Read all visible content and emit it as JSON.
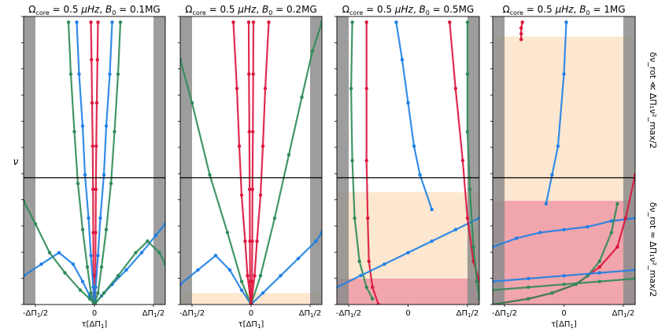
{
  "figure": {
    "y_axis_symbol": "ν",
    "right_label_top": "δν_rot ≪ ΔΠ₁ν²_max/2",
    "right_label_bottom": "δν_rot ≈ ΔΠ₁ν²_max/2",
    "colors": {
      "prograde": "#dc143c",
      "zonal": "#2e8b57",
      "retrograde": "#1e7fe6",
      "shade_gray": "#8c8c8c",
      "band_peach": "#fde3c8",
      "band_red": "#f0a0a8",
      "divider": "#000000"
    }
  },
  "chart_data": [
    {
      "type": "scatter",
      "title": "Ω_core = 0.5 μHz, B_0 = 0.1MG",
      "title_parts": {
        "omega": "Ω",
        "omega_sub": "core",
        "omega_val": " = 0.5 ",
        "unit": "μHz",
        "sep": ", ",
        "b": "B",
        "b_sub": "0",
        "b_val": " = 0.1MG"
      },
      "xlabel": "τ[ΔΠ₁]",
      "xlabel_parts": {
        "main": "τ[ΔΠ",
        "sub": "1",
        "end": "]"
      },
      "xticks": [
        "-ΔΠ₁/2",
        "0",
        "ΔΠ₁/2"
      ],
      "xtick_parts": [
        {
          "pre": "-ΔΠ",
          "sub": "1",
          "post": "/2"
        },
        {
          "pre": "0",
          "sub": "",
          "post": ""
        },
        {
          "pre": "ΔΠ",
          "sub": "1",
          "post": "/2"
        }
      ],
      "xlim": [
        -0.6,
        0.6
      ],
      "ylim": [
        0,
        1
      ],
      "shaded_gray_x": [
        [
          -0.6,
          -0.5
        ],
        [
          0.5,
          0.6
        ]
      ],
      "bands": [],
      "divider_y": 0.44,
      "series": [
        {
          "role": "prograde",
          "kind": "dots",
          "x": [
            -0.03,
            -0.025,
            -0.02,
            -0.015,
            -0.012,
            -0.01,
            -0.008,
            -0.007
          ],
          "y": [
            0.98,
            0.85,
            0.7,
            0.55,
            0.4,
            0.25,
            0.1,
            0.0
          ]
        },
        {
          "role": "prograde",
          "kind": "dots",
          "x": [
            0.03,
            0.025,
            0.02,
            0.015,
            0.012,
            0.01,
            0.008,
            0.007
          ],
          "y": [
            0.98,
            0.85,
            0.7,
            0.55,
            0.4,
            0.25,
            0.1,
            0.0
          ]
        },
        {
          "role": "retrograde",
          "kind": "dots",
          "x": [
            -0.6,
            -0.45,
            -0.3,
            -0.18,
            -0.1,
            -0.04,
            0.0
          ],
          "y": [
            0.1,
            0.14,
            0.18,
            0.14,
            0.08,
            0.03,
            0.0
          ]
        },
        {
          "role": "retrograde",
          "kind": "dots",
          "x": [
            0.0,
            0.06,
            0.15,
            0.27,
            0.4,
            0.52,
            0.6
          ],
          "y": [
            0.0,
            0.03,
            0.07,
            0.12,
            0.18,
            0.24,
            0.28
          ]
        },
        {
          "role": "zonal",
          "kind": "dots",
          "x": [
            -0.6,
            -0.5,
            -0.38,
            -0.25,
            -0.12,
            -0.04,
            0.0
          ],
          "y": [
            0.36,
            0.28,
            0.18,
            0.11,
            0.05,
            0.02,
            0.0
          ]
        },
        {
          "role": "zonal",
          "kind": "dots",
          "x": [
            0.0,
            0.08,
            0.2,
            0.35,
            0.45,
            0.55,
            0.6
          ],
          "y": [
            0.0,
            0.04,
            0.1,
            0.18,
            0.22,
            0.18,
            0.14
          ]
        },
        {
          "role": "retrograde",
          "kind": "dots",
          "x": [
            -0.15,
            -0.13,
            -0.1,
            -0.08,
            -0.05,
            -0.03,
            -0.01,
            0.0
          ],
          "y": [
            0.98,
            0.8,
            0.62,
            0.45,
            0.3,
            0.17,
            0.06,
            0.0
          ]
        },
        {
          "role": "retrograde",
          "kind": "dots",
          "x": [
            0.15,
            0.13,
            0.1,
            0.08,
            0.05,
            0.03,
            0.01,
            0.0
          ],
          "y": [
            0.98,
            0.8,
            0.62,
            0.45,
            0.3,
            0.17,
            0.06,
            0.0
          ]
        },
        {
          "role": "zonal",
          "kind": "dots",
          "x": [
            -0.22,
            -0.2,
            -0.17,
            -0.14,
            -0.1,
            -0.06,
            -0.03,
            0.0
          ],
          "y": [
            0.98,
            0.8,
            0.6,
            0.42,
            0.26,
            0.13,
            0.04,
            0.0
          ]
        },
        {
          "role": "zonal",
          "kind": "dots",
          "x": [
            0.22,
            0.2,
            0.17,
            0.14,
            0.1,
            0.06,
            0.03,
            0.0
          ],
          "y": [
            0.98,
            0.8,
            0.6,
            0.42,
            0.26,
            0.13,
            0.04,
            0.0
          ]
        }
      ]
    },
    {
      "type": "scatter",
      "title": "Ω_core = 0.5 μHz, B_0 = 0.2MG",
      "title_parts": {
        "omega": "Ω",
        "omega_sub": "core",
        "omega_val": " = 0.5 ",
        "unit": "μHz",
        "sep": ", ",
        "b": "B",
        "b_sub": "0",
        "b_val": " = 0.2MG"
      },
      "xlabel": "τ[ΔΠ₁]",
      "xlabel_parts": {
        "main": "τ[ΔΠ",
        "sub": "1",
        "end": "]"
      },
      "xticks": [
        "-ΔΠ₁/2",
        "0",
        "ΔΠ₁/2"
      ],
      "xtick_parts": [
        {
          "pre": "-ΔΠ",
          "sub": "1",
          "post": "/2"
        },
        {
          "pre": "0",
          "sub": "",
          "post": ""
        },
        {
          "pre": "ΔΠ",
          "sub": "1",
          "post": "/2"
        }
      ],
      "xlim": [
        -0.6,
        0.6
      ],
      "ylim": [
        0,
        1
      ],
      "shaded_gray_x": [
        [
          -0.6,
          -0.5
        ],
        [
          0.5,
          0.6
        ]
      ],
      "bands": [
        {
          "color": "peach",
          "y": [
            0.0,
            0.04
          ]
        }
      ],
      "divider_y": 0.44,
      "series": [
        {
          "role": "prograde",
          "kind": "dots",
          "x": [
            -0.02,
            -0.018,
            -0.015,
            -0.012,
            -0.01,
            -0.008,
            -0.006
          ],
          "y": [
            0.98,
            0.8,
            0.6,
            0.4,
            0.22,
            0.08,
            0.0
          ]
        },
        {
          "role": "prograde",
          "kind": "dots",
          "x": [
            0.02,
            0.018,
            0.015,
            0.012,
            0.01,
            0.008,
            0.006
          ],
          "y": [
            0.98,
            0.8,
            0.6,
            0.4,
            0.22,
            0.08,
            0.0
          ]
        },
        {
          "role": "retrograde",
          "kind": "dots",
          "x": [
            -0.6,
            -0.45,
            -0.3,
            -0.18,
            -0.08,
            0.0
          ],
          "y": [
            0.07,
            0.12,
            0.17,
            0.12,
            0.05,
            0.0
          ]
        },
        {
          "role": "retrograde",
          "kind": "dots",
          "x": [
            0.0,
            0.1,
            0.25,
            0.4,
            0.55,
            0.6
          ],
          "y": [
            0.0,
            0.04,
            0.1,
            0.16,
            0.22,
            0.25
          ]
        },
        {
          "role": "zonal",
          "kind": "dots",
          "x": [
            -0.6,
            -0.5,
            -0.35,
            -0.2,
            -0.08,
            0.0
          ],
          "y": [
            0.85,
            0.7,
            0.45,
            0.25,
            0.08,
            0.0
          ]
        },
        {
          "role": "zonal",
          "kind": "dots",
          "x": [
            0.0,
            0.08,
            0.2,
            0.32,
            0.43,
            0.52,
            0.6
          ],
          "y": [
            0.0,
            0.1,
            0.3,
            0.52,
            0.72,
            0.88,
            0.98
          ]
        },
        {
          "role": "prograde",
          "kind": "dots",
          "x": [
            -0.15,
            -0.12,
            -0.1,
            -0.08,
            -0.05,
            -0.03,
            0.0
          ],
          "y": [
            0.98,
            0.75,
            0.55,
            0.38,
            0.22,
            0.1,
            0.0
          ]
        },
        {
          "role": "prograde",
          "kind": "dots",
          "x": [
            0.15,
            0.12,
            0.1,
            0.08,
            0.05,
            0.03,
            0.0
          ],
          "y": [
            0.98,
            0.75,
            0.55,
            0.38,
            0.22,
            0.1,
            0.0
          ]
        }
      ]
    },
    {
      "type": "scatter",
      "title": "Ω_core = 0.5 μHz, B_0 = 0.5MG",
      "title_parts": {
        "omega": "Ω",
        "omega_sub": "core",
        "omega_val": " = 0.5 ",
        "unit": "μHz",
        "sep": ", ",
        "b": "B",
        "b_sub": "0",
        "b_val": " = 0.5MG"
      },
      "xlabel": "",
      "xlabel_parts": {
        "main": "",
        "sub": "",
        "end": ""
      },
      "xticks": [
        "-ΔΠ₁/2",
        "0",
        "ΔΠ₁/2"
      ],
      "xtick_parts": [
        {
          "pre": "-ΔΠ",
          "sub": "1",
          "post": "/2"
        },
        {
          "pre": "0",
          "sub": "",
          "post": ""
        },
        {
          "pre": "ΔΠ",
          "sub": "1",
          "post": "/2"
        }
      ],
      "xlim": [
        -0.6,
        0.6
      ],
      "ylim": [
        0,
        1
      ],
      "shaded_gray_x": [
        [
          -0.6,
          -0.5
        ],
        [
          0.5,
          0.6
        ]
      ],
      "bands": [
        {
          "color": "peach",
          "y": [
            0.08,
            0.39
          ]
        },
        {
          "color": "red",
          "y": [
            0.0,
            0.09
          ]
        }
      ],
      "divider_y": 0.44,
      "series": [
        {
          "role": "zonal",
          "kind": "dots",
          "x": [
            -0.47,
            -0.48,
            -0.47,
            -0.45,
            -0.41,
            -0.35,
            -0.3
          ],
          "y": [
            0.98,
            0.75,
            0.5,
            0.3,
            0.15,
            0.06,
            0.02
          ]
        },
        {
          "role": "prograde",
          "kind": "dots",
          "x": [
            -0.35,
            -0.35,
            -0.35,
            -0.34,
            -0.33,
            -0.3,
            -0.25
          ],
          "y": [
            0.98,
            0.75,
            0.5,
            0.3,
            0.15,
            0.06,
            0.0
          ]
        },
        {
          "role": "retrograde",
          "kind": "dots",
          "x": [
            -0.1,
            -0.05,
            0.0,
            0.05,
            0.1,
            0.2
          ],
          "y": [
            0.98,
            0.85,
            0.7,
            0.55,
            0.45,
            0.33
          ]
        },
        {
          "role": "retrograde",
          "kind": "dots",
          "x": [
            -0.6,
            -0.4,
            -0.2,
            0.0,
            0.2,
            0.4,
            0.6
          ],
          "y": [
            0.06,
            0.1,
            0.14,
            0.18,
            0.22,
            0.26,
            0.3
          ]
        },
        {
          "role": "prograde",
          "kind": "dots",
          "x": [
            0.35,
            0.4,
            0.46,
            0.5,
            0.55,
            0.6
          ],
          "y": [
            0.98,
            0.75,
            0.5,
            0.3,
            0.15,
            0.08
          ]
        },
        {
          "role": "zonal",
          "kind": "dots",
          "x": [
            0.5,
            0.5,
            0.5,
            0.52,
            0.55,
            0.58,
            0.6
          ],
          "y": [
            0.98,
            0.8,
            0.6,
            0.4,
            0.2,
            0.08,
            0.02
          ]
        }
      ]
    },
    {
      "type": "scatter",
      "title": "Ω_core = 0.5 μHz, B_0 = 1MG",
      "title_parts": {
        "omega": "Ω",
        "omega_sub": "core",
        "omega_val": " = 0.5 ",
        "unit": "μHz",
        "sep": ", ",
        "b": "B",
        "b_sub": "0",
        "b_val": " = 1MG"
      },
      "xlabel": "τ[ΔΠ₁]",
      "xlabel_parts": {
        "main": "τ[ΔΠ",
        "sub": "1",
        "end": "]"
      },
      "xticks": [
        "-ΔΠ₁/2",
        "0",
        "ΔΠ₁/2"
      ],
      "xtick_parts": [
        {
          "pre": "-ΔΠ",
          "sub": "1",
          "post": "/2"
        },
        {
          "pre": "0",
          "sub": "",
          "post": ""
        },
        {
          "pre": "ΔΠ",
          "sub": "1",
          "post": "/2"
        }
      ],
      "xlim": [
        -0.6,
        0.6
      ],
      "ylim": [
        0,
        1
      ],
      "shaded_gray_x": [
        [
          -0.6,
          -0.5
        ],
        [
          0.5,
          0.6
        ]
      ],
      "bands": [
        {
          "color": "peach",
          "y": [
            0.35,
            0.93
          ]
        },
        {
          "color": "red",
          "y": [
            0.0,
            0.36
          ]
        }
      ],
      "divider_y": 0.44,
      "series": [
        {
          "role": "prograde",
          "kind": "dots",
          "x": [
            -0.35,
            -0.36,
            -0.36,
            -0.36
          ],
          "y": [
            0.98,
            0.96,
            0.94,
            0.92
          ]
        },
        {
          "role": "retrograde",
          "kind": "dots",
          "x": [
            0.02,
            0.0,
            -0.05,
            -0.1,
            -0.15
          ],
          "y": [
            0.98,
            0.8,
            0.55,
            0.45,
            0.35
          ]
        },
        {
          "role": "retrograde",
          "kind": "dots",
          "x": [
            -0.6,
            -0.4,
            -0.2,
            0.0,
            0.2,
            0.4,
            0.6
          ],
          "y": [
            0.2,
            0.23,
            0.25,
            0.26,
            0.27,
            0.29,
            0.3
          ]
        },
        {
          "role": "prograde",
          "kind": "dots",
          "x": [
            -0.6,
            -0.3,
            -0.1,
            0.1,
            0.3,
            0.45,
            0.52,
            0.6
          ],
          "y": [
            0.0,
            0.02,
            0.04,
            0.07,
            0.13,
            0.2,
            0.3,
            0.45
          ]
        },
        {
          "role": "zonal",
          "kind": "dots",
          "x": [
            -0.6,
            -0.3,
            -0.1,
            0.1,
            0.2,
            0.3,
            0.4,
            0.45
          ],
          "y": [
            0.0,
            0.02,
            0.04,
            0.07,
            0.1,
            0.15,
            0.25,
            0.35
          ]
        },
        {
          "role": "retrograde",
          "kind": "dots",
          "x": [
            -0.6,
            -0.3,
            0.0,
            0.3,
            0.6
          ],
          "y": [
            0.08,
            0.09,
            0.1,
            0.11,
            0.12
          ]
        },
        {
          "role": "zonal",
          "kind": "dots",
          "x": [
            -0.6,
            -0.3,
            0.0,
            0.3,
            0.6
          ],
          "y": [
            0.05,
            0.06,
            0.07,
            0.08,
            0.09
          ]
        }
      ]
    }
  ]
}
